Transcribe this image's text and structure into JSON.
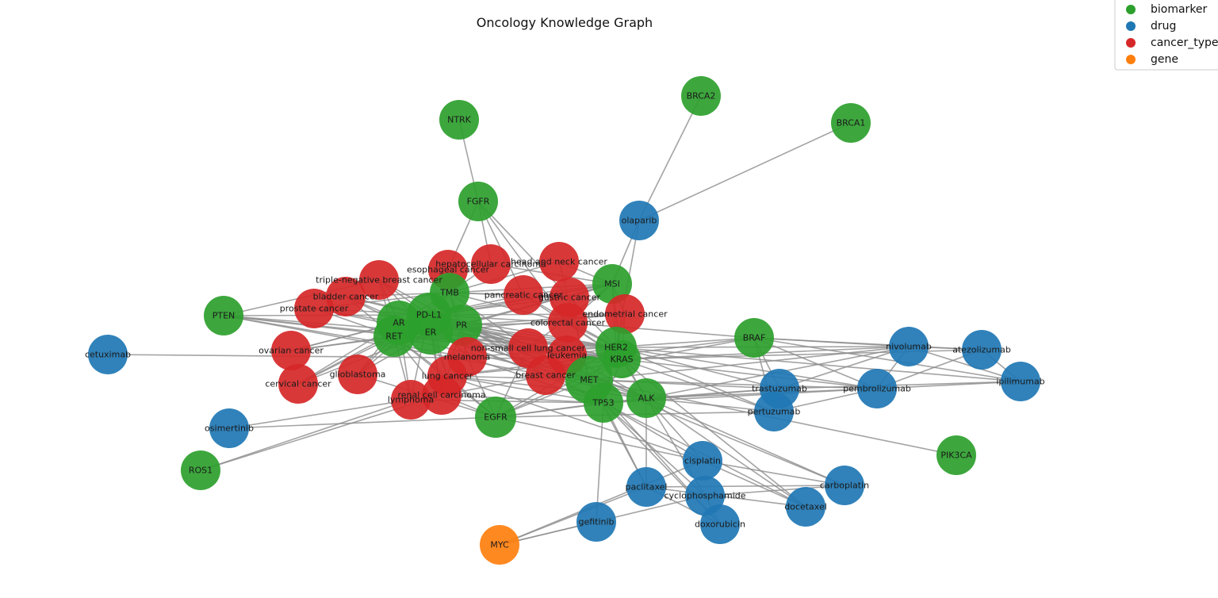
{
  "title": "Oncology Knowledge Graph",
  "colors": {
    "biomarker": "#2ca02c",
    "drug": "#1f77b4",
    "cancer_type": "#d62728",
    "gene": "#ff7f0e",
    "edge": "#8c8c8c"
  },
  "legend": [
    {
      "label": "biomarker",
      "category": "biomarker"
    },
    {
      "label": "drug",
      "category": "drug"
    },
    {
      "label": "cancer_type",
      "category": "cancer_type"
    },
    {
      "label": "gene",
      "category": "gene"
    }
  ],
  "nodes": [
    {
      "id": "NTRK",
      "label": "NTRK",
      "category": "biomarker"
    },
    {
      "id": "BRCA2",
      "label": "BRCA2",
      "category": "biomarker"
    },
    {
      "id": "BRCA1",
      "label": "BRCA1",
      "category": "biomarker"
    },
    {
      "id": "FGFR",
      "label": "FGFR",
      "category": "biomarker"
    },
    {
      "id": "olaparib",
      "label": "olaparib",
      "category": "drug"
    },
    {
      "id": "head and neck cancer",
      "label": "head and neck cancer",
      "category": "cancer_type"
    },
    {
      "id": "hepatocellular carcinoma",
      "label": "hepatocellular carcinoma",
      "category": "cancer_type"
    },
    {
      "id": "esophageal cancer",
      "label": "esophageal cancer",
      "category": "cancer_type"
    },
    {
      "id": "triple-negative breast cancer",
      "label": "triple-negative breast cancer",
      "category": "cancer_type"
    },
    {
      "id": "MSI",
      "label": "MSI",
      "category": "biomarker"
    },
    {
      "id": "TMB",
      "label": "TMB",
      "category": "biomarker"
    },
    {
      "id": "pancreatic cancer",
      "label": "pancreatic cancer",
      "category": "cancer_type"
    },
    {
      "id": "gastric cancer",
      "label": "gastric cancer",
      "category": "cancer_type"
    },
    {
      "id": "bladder cancer",
      "label": "bladder cancer",
      "category": "cancer_type"
    },
    {
      "id": "prostate cancer",
      "label": "prostate cancer",
      "category": "cancer_type"
    },
    {
      "id": "endometrial cancer",
      "label": "endometrial cancer",
      "category": "cancer_type"
    },
    {
      "id": "PD-L1",
      "label": "PD-L1",
      "category": "biomarker"
    },
    {
      "id": "PTEN",
      "label": "PTEN",
      "category": "biomarker"
    },
    {
      "id": "AR",
      "label": "AR",
      "category": "biomarker"
    },
    {
      "id": "PR",
      "label": "PR",
      "category": "biomarker"
    },
    {
      "id": "colorectal cancer",
      "label": "colorectal cancer",
      "category": "cancer_type"
    },
    {
      "id": "ER",
      "label": "ER",
      "category": "biomarker"
    },
    {
      "id": "RET",
      "label": "RET",
      "category": "biomarker"
    },
    {
      "id": "BRAF",
      "label": "BRAF",
      "category": "biomarker"
    },
    {
      "id": "nivolumab",
      "label": "nivolumab",
      "category": "drug"
    },
    {
      "id": "atezolizumab",
      "label": "atezolizumab",
      "category": "drug"
    },
    {
      "id": "non-small cell lung cancer",
      "label": "non-small cell lung cancer",
      "category": "cancer_type"
    },
    {
      "id": "HER2",
      "label": "HER2",
      "category": "biomarker"
    },
    {
      "id": "ovarian cancer",
      "label": "ovarian cancer",
      "category": "cancer_type"
    },
    {
      "id": "cetuximab",
      "label": "cetuximab",
      "category": "drug"
    },
    {
      "id": "melanoma",
      "label": "melanoma",
      "category": "cancer_type"
    },
    {
      "id": "leukemia",
      "label": "leukemia",
      "category": "cancer_type"
    },
    {
      "id": "KRAS",
      "label": "KRAS",
      "category": "biomarker"
    },
    {
      "id": "glioblastoma",
      "label": "glioblastoma",
      "category": "cancer_type"
    },
    {
      "id": "lung cancer",
      "label": "lung cancer",
      "category": "cancer_type"
    },
    {
      "id": "breast cancer",
      "label": "breast cancer",
      "category": "cancer_type"
    },
    {
      "id": "MET",
      "label": "MET",
      "category": "biomarker"
    },
    {
      "id": "ipilimumab",
      "label": "ipilimumab",
      "category": "drug"
    },
    {
      "id": "cervical cancer",
      "label": "cervical cancer",
      "category": "cancer_type"
    },
    {
      "id": "trastuzumab",
      "label": "trastuzumab",
      "category": "drug"
    },
    {
      "id": "pembrolizumab",
      "label": "pembrolizumab",
      "category": "drug"
    },
    {
      "id": "renal cell carcinoma",
      "label": "renal cell carcinoma",
      "category": "cancer_type"
    },
    {
      "id": "lymphoma",
      "label": "lymphoma",
      "category": "cancer_type"
    },
    {
      "id": "ALK",
      "label": "ALK",
      "category": "biomarker"
    },
    {
      "id": "TP53",
      "label": "TP53",
      "category": "biomarker"
    },
    {
      "id": "pertuzumab",
      "label": "pertuzumab",
      "category": "drug"
    },
    {
      "id": "EGFR",
      "label": "EGFR",
      "category": "biomarker"
    },
    {
      "id": "osimertinib",
      "label": "osimertinib",
      "category": "drug"
    },
    {
      "id": "PIK3CA",
      "label": "PIK3CA",
      "category": "biomarker"
    },
    {
      "id": "cisplatin",
      "label": "cisplatin",
      "category": "drug"
    },
    {
      "id": "ROS1",
      "label": "ROS1",
      "category": "biomarker"
    },
    {
      "id": "carboplatin",
      "label": "carboplatin",
      "category": "drug"
    },
    {
      "id": "paclitaxel",
      "label": "paclitaxel",
      "category": "drug"
    },
    {
      "id": "cyclophosphamide",
      "label": "cyclophosphamide",
      "category": "drug"
    },
    {
      "id": "docetaxel",
      "label": "docetaxel",
      "category": "drug"
    },
    {
      "id": "gefitinib",
      "label": "gefitinib",
      "category": "drug"
    },
    {
      "id": "doxorubicin",
      "label": "doxorubicin",
      "category": "drug"
    },
    {
      "id": "MYC",
      "label": "MYC",
      "category": "gene"
    }
  ],
  "edges": [
    [
      "NTRK",
      "FGFR"
    ],
    [
      "BRCA2",
      "olaparib"
    ],
    [
      "BRCA1",
      "olaparib"
    ],
    [
      "olaparib",
      "MSI"
    ],
    [
      "olaparib",
      "HER2"
    ],
    [
      "FGFR",
      "esophageal cancer"
    ],
    [
      "FGFR",
      "hepatocellular carcinoma"
    ],
    [
      "FGFR",
      "pancreatic cancer"
    ],
    [
      "FGFR",
      "gastric cancer"
    ],
    [
      "FGFR",
      "colorectal cancer"
    ],
    [
      "PTEN",
      "triple-negative breast cancer"
    ],
    [
      "PTEN",
      "PD-L1"
    ],
    [
      "PTEN",
      "ER"
    ],
    [
      "PTEN",
      "non-small cell lung cancer"
    ],
    [
      "PTEN",
      "breast cancer"
    ],
    [
      "PTEN",
      "melanoma"
    ],
    [
      "PTEN",
      "leukemia"
    ],
    [
      "cetuximab",
      "KRAS"
    ],
    [
      "osimertinib",
      "EGFR"
    ],
    [
      "osimertinib",
      "lymphoma"
    ],
    [
      "ROS1",
      "lymphoma"
    ],
    [
      "ROS1",
      "renal cell carcinoma"
    ],
    [
      "MYC",
      "gefitinib"
    ],
    [
      "MYC",
      "paclitaxel"
    ],
    [
      "MYC",
      "cisplatin"
    ],
    [
      "MYC",
      "cyclophosphamide"
    ],
    [
      "BRAF",
      "nivolumab"
    ],
    [
      "BRAF",
      "atezolizumab"
    ],
    [
      "BRAF",
      "ipilimumab"
    ],
    [
      "BRAF",
      "pembrolizumab"
    ],
    [
      "BRAF",
      "trastuzumab"
    ],
    [
      "BRAF",
      "pertuzumab"
    ],
    [
      "BRAF",
      "lung cancer"
    ],
    [
      "BRAF",
      "melanoma"
    ],
    [
      "BRAF",
      "colorectal cancer"
    ],
    [
      "BRAF",
      "renal cell carcinoma"
    ],
    [
      "nivolumab",
      "atezolizumab"
    ],
    [
      "nivolumab",
      "ipilimumab"
    ],
    [
      "nivolumab",
      "HER2"
    ],
    [
      "nivolumab",
      "KRAS"
    ],
    [
      "nivolumab",
      "MET"
    ],
    [
      "nivolumab",
      "trastuzumab"
    ],
    [
      "nivolumab",
      "pembrolizumab"
    ],
    [
      "nivolumab",
      "ALK"
    ],
    [
      "atezolizumab",
      "ipilimumab"
    ],
    [
      "atezolizumab",
      "KRAS"
    ],
    [
      "atezolizumab",
      "pembrolizumab"
    ],
    [
      "ipilimumab",
      "pembrolizumab"
    ],
    [
      "ipilimumab",
      "trastuzumab"
    ],
    [
      "ipilimumab",
      "HER2"
    ],
    [
      "pembrolizumab",
      "HER2"
    ],
    [
      "pembrolizumab",
      "KRAS"
    ],
    [
      "pembrolizumab",
      "MET"
    ],
    [
      "pembrolizumab",
      "ALK"
    ],
    [
      "pembrolizumab",
      "TP53"
    ],
    [
      "pembrolizumab",
      "pertuzumab"
    ],
    [
      "trastuzumab",
      "HER2"
    ],
    [
      "trastuzumab",
      "MET"
    ],
    [
      "trastuzumab",
      "ALK"
    ],
    [
      "trastuzumab",
      "TP53"
    ],
    [
      "trastuzumab",
      "pertuzumab"
    ],
    [
      "pertuzumab",
      "HER2"
    ],
    [
      "pertuzumab",
      "KRAS"
    ],
    [
      "pertuzumab",
      "ALK"
    ],
    [
      "PIK3CA",
      "MET"
    ],
    [
      "cisplatin",
      "carboplatin"
    ],
    [
      "cisplatin",
      "docetaxel"
    ],
    [
      "cisplatin",
      "ALK"
    ],
    [
      "cisplatin",
      "TP53"
    ],
    [
      "cisplatin",
      "EGFR"
    ],
    [
      "paclitaxel",
      "carboplatin"
    ],
    [
      "paclitaxel",
      "docetaxel"
    ],
    [
      "paclitaxel",
      "doxorubicin"
    ],
    [
      "paclitaxel",
      "ALK"
    ],
    [
      "paclitaxel",
      "TP53"
    ],
    [
      "paclitaxel",
      "MET"
    ],
    [
      "cyclophosphamide",
      "carboplatin"
    ],
    [
      "cyclophosphamide",
      "doxorubicin"
    ],
    [
      "cyclophosphamide",
      "ALK"
    ],
    [
      "cyclophosphamide",
      "TP53"
    ],
    [
      "docetaxel",
      "ALK"
    ],
    [
      "docetaxel",
      "TP53"
    ],
    [
      "docetaxel",
      "KRAS"
    ],
    [
      "carboplatin",
      "ALK"
    ],
    [
      "carboplatin",
      "MET"
    ],
    [
      "doxorubicin",
      "TP53"
    ],
    [
      "doxorubicin",
      "MET"
    ],
    [
      "gefitinib",
      "TP53"
    ],
    [
      "EGFR",
      "MET"
    ],
    [
      "EGFR",
      "KRAS"
    ],
    [
      "EGFR",
      "HER2"
    ],
    [
      "EGFR",
      "TP53"
    ],
    [
      "EGFR",
      "ALK"
    ],
    [
      "EGFR",
      "lung cancer"
    ],
    [
      "EGFR",
      "non-small cell lung cancer"
    ],
    [
      "EGFR",
      "glioblastoma"
    ],
    [
      "EGFR",
      "renal cell carcinoma"
    ],
    [
      "EGFR",
      "melanoma"
    ],
    [
      "EGFR",
      "pertuzumab"
    ],
    [
      "TMB",
      "PD-L1"
    ],
    [
      "TMB",
      "MSI"
    ],
    [
      "TMB",
      "AR"
    ],
    [
      "TMB",
      "ER"
    ],
    [
      "TMB",
      "PR"
    ],
    [
      "TMB",
      "RET"
    ],
    [
      "TMB",
      "pancreatic cancer"
    ],
    [
      "TMB",
      "gastric cancer"
    ],
    [
      "TMB",
      "colorectal cancer"
    ],
    [
      "TMB",
      "non-small cell lung cancer"
    ],
    [
      "TMB",
      "melanoma"
    ],
    [
      "TMB",
      "bladder cancer"
    ],
    [
      "TMB",
      "prostate cancer"
    ],
    [
      "TMB",
      "esophageal cancer"
    ],
    [
      "TMB",
      "head and neck cancer"
    ],
    [
      "TMB",
      "hepatocellular carcinoma"
    ],
    [
      "MSI",
      "pancreatic cancer"
    ],
    [
      "MSI",
      "gastric cancer"
    ],
    [
      "MSI",
      "colorectal cancer"
    ],
    [
      "MSI",
      "endometrial cancer"
    ],
    [
      "MSI",
      "non-small cell lung cancer"
    ],
    [
      "MSI",
      "hepatocellular carcinoma"
    ],
    [
      "MSI",
      "head and neck cancer"
    ],
    [
      "MSI",
      "PD-L1"
    ],
    [
      "MSI",
      "PR"
    ],
    [
      "MSI",
      "ER"
    ],
    [
      "MSI",
      "AR"
    ],
    [
      "MSI",
      "HER2"
    ],
    [
      "MSI",
      "KRAS"
    ],
    [
      "PD-L1",
      "AR"
    ],
    [
      "PD-L1",
      "ER"
    ],
    [
      "PD-L1",
      "PR"
    ],
    [
      "PD-L1",
      "RET"
    ],
    [
      "PD-L1",
      "HER2"
    ],
    [
      "PD-L1",
      "KRAS"
    ],
    [
      "PD-L1",
      "MET"
    ],
    [
      "PD-L1",
      "prostate cancer"
    ],
    [
      "PD-L1",
      "bladder cancer"
    ],
    [
      "PD-L1",
      "triple-negative breast cancer"
    ],
    [
      "PD-L1",
      "ovarian cancer"
    ],
    [
      "PD-L1",
      "glioblastoma"
    ],
    [
      "PD-L1",
      "cervical cancer"
    ],
    [
      "PD-L1",
      "lung cancer"
    ],
    [
      "PD-L1",
      "breast cancer"
    ],
    [
      "PD-L1",
      "melanoma"
    ],
    [
      "PD-L1",
      "leukemia"
    ],
    [
      "PD-L1",
      "lymphoma"
    ],
    [
      "PD-L1",
      "renal cell carcinoma"
    ],
    [
      "PD-L1",
      "endometrial cancer"
    ],
    [
      "PD-L1",
      "pancreatic cancer"
    ],
    [
      "PD-L1",
      "gastric cancer"
    ],
    [
      "PD-L1",
      "colorectal cancer"
    ],
    [
      "PD-L1",
      "non-small cell lung cancer"
    ],
    [
      "AR",
      "ER"
    ],
    [
      "AR",
      "PR"
    ],
    [
      "AR",
      "RET"
    ],
    [
      "AR",
      "prostate cancer"
    ],
    [
      "AR",
      "bladder cancer"
    ],
    [
      "AR",
      "triple-negative breast cancer"
    ],
    [
      "AR",
      "ovarian cancer"
    ],
    [
      "AR",
      "cervical cancer"
    ],
    [
      "AR",
      "glioblastoma"
    ],
    [
      "AR",
      "breast cancer"
    ],
    [
      "AR",
      "HER2"
    ],
    [
      "AR",
      "KRAS"
    ],
    [
      "AR",
      "MET"
    ],
    [
      "AR",
      "lymphoma"
    ],
    [
      "ER",
      "PR"
    ],
    [
      "ER",
      "RET"
    ],
    [
      "ER",
      "breast cancer"
    ],
    [
      "ER",
      "ovarian cancer"
    ],
    [
      "ER",
      "cervical cancer"
    ],
    [
      "ER",
      "glioblastoma"
    ],
    [
      "ER",
      "prostate cancer"
    ],
    [
      "ER",
      "bladder cancer"
    ],
    [
      "ER",
      "triple-negative breast cancer"
    ],
    [
      "ER",
      "HER2"
    ],
    [
      "ER",
      "KRAS"
    ],
    [
      "ER",
      "MET"
    ],
    [
      "ER",
      "lung cancer"
    ],
    [
      "ER",
      "endometrial cancer"
    ],
    [
      "ER",
      "renal cell carcinoma"
    ],
    [
      "PR",
      "RET"
    ],
    [
      "PR",
      "breast cancer"
    ],
    [
      "PR",
      "HER2"
    ],
    [
      "PR",
      "KRAS"
    ],
    [
      "PR",
      "MET"
    ],
    [
      "PR",
      "TP53"
    ],
    [
      "PR",
      "ALK"
    ],
    [
      "PR",
      "endometrial cancer"
    ],
    [
      "PR",
      "colorectal cancer"
    ],
    [
      "PR",
      "non-small cell lung cancer"
    ],
    [
      "PR",
      "leukemia"
    ],
    [
      "PR",
      "lung cancer"
    ],
    [
      "PR",
      "melanoma"
    ],
    [
      "PR",
      "triple-negative breast cancer"
    ],
    [
      "PR",
      "bladder cancer"
    ],
    [
      "RET",
      "prostate cancer"
    ],
    [
      "RET",
      "ovarian cancer"
    ],
    [
      "RET",
      "cervical cancer"
    ],
    [
      "RET",
      "glioblastoma"
    ],
    [
      "RET",
      "lymphoma"
    ],
    [
      "RET",
      "renal cell carcinoma"
    ],
    [
      "RET",
      "lung cancer"
    ],
    [
      "RET",
      "bladder cancer"
    ],
    [
      "RET",
      "triple-negative breast cancer"
    ],
    [
      "RET",
      "HER2"
    ],
    [
      "RET",
      "KRAS"
    ],
    [
      "RET",
      "MET"
    ],
    [
      "RET",
      "EGFR"
    ],
    [
      "HER2",
      "KRAS"
    ],
    [
      "HER2",
      "MET"
    ],
    [
      "HER2",
      "TP53"
    ],
    [
      "HER2",
      "ALK"
    ],
    [
      "HER2",
      "breast cancer"
    ],
    [
      "HER2",
      "gastric cancer"
    ],
    [
      "HER2",
      "colorectal cancer"
    ],
    [
      "HER2",
      "non-small cell lung cancer"
    ],
    [
      "HER2",
      "endometrial cancer"
    ],
    [
      "HER2",
      "leukemia"
    ],
    [
      "HER2",
      "pancreatic cancer"
    ],
    [
      "KRAS",
      "MET"
    ],
    [
      "KRAS",
      "TP53"
    ],
    [
      "KRAS",
      "ALK"
    ],
    [
      "KRAS",
      "colorectal cancer"
    ],
    [
      "KRAS",
      "pancreatic cancer"
    ],
    [
      "KRAS",
      "non-small cell lung cancer"
    ],
    [
      "KRAS",
      "lung cancer"
    ],
    [
      "KRAS",
      "endometrial cancer"
    ],
    [
      "KRAS",
      "leukemia"
    ],
    [
      "MET",
      "TP53"
    ],
    [
      "MET",
      "ALK"
    ],
    [
      "MET",
      "lung cancer"
    ],
    [
      "MET",
      "non-small cell lung cancer"
    ],
    [
      "MET",
      "breast cancer"
    ],
    [
      "MET",
      "leukemia"
    ],
    [
      "MET",
      "gastric cancer"
    ],
    [
      "MET",
      "head and neck cancer"
    ],
    [
      "TP53",
      "ALK"
    ],
    [
      "TP53",
      "breast cancer"
    ],
    [
      "TP53",
      "lung cancer"
    ],
    [
      "TP53",
      "melanoma"
    ],
    [
      "TP53",
      "leukemia"
    ],
    [
      "TP53",
      "lymphoma"
    ],
    [
      "TP53",
      "renal cell carcinoma"
    ],
    [
      "ALK",
      "non-small cell lung cancer"
    ],
    [
      "ALK",
      "lung cancer"
    ],
    [
      "ALK",
      "leukemia"
    ],
    [
      "ALK",
      "breast cancer"
    ],
    [
      "cisplatin",
      "lung cancer"
    ]
  ]
}
